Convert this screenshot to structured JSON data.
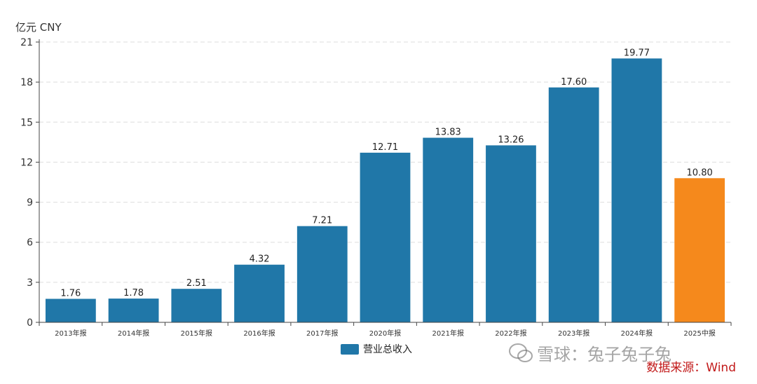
{
  "unit_label": "亿元  CNY",
  "legend_label": "营业总收入",
  "watermark": "雪球：兔子兔子兔",
  "source": "数据来源：Wind",
  "colors": {
    "primary": "#2077a8",
    "highlight": "#f5891c",
    "axis": "#444444",
    "grid": "#dddddd",
    "text": "#333333"
  },
  "chart_data": {
    "type": "bar",
    "categories": [
      "2013年报",
      "2014年报",
      "2015年报",
      "2016年报",
      "2017年报",
      "2020年报",
      "2021年报",
      "2022年报",
      "2023年报",
      "2024年报",
      "2025中报"
    ],
    "series": [
      {
        "name": "营业总收入",
        "values": [
          1.76,
          1.78,
          2.51,
          4.32,
          7.21,
          12.71,
          13.83,
          13.26,
          17.6,
          19.77,
          10.8
        ]
      }
    ],
    "value_labels": [
      "1.76",
      "1.78",
      "2.51",
      "4.32",
      "7.21",
      "12.71",
      "13.83",
      "13.26",
      "17.60",
      "19.77",
      "10.80"
    ],
    "highlight_index": 10,
    "ylim": [
      0,
      21
    ],
    "yticks": [
      0,
      3,
      6,
      9,
      12,
      15,
      18,
      21
    ],
    "grid": true,
    "legend_position": "bottom-center"
  }
}
